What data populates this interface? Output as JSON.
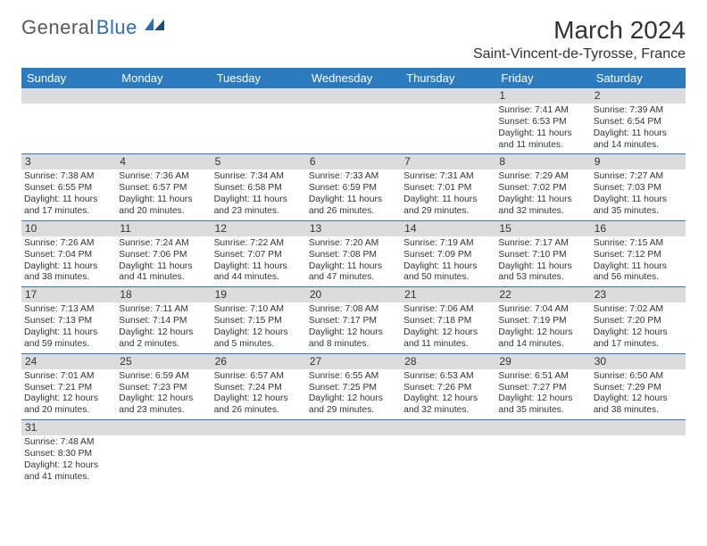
{
  "logo": {
    "part1": "General",
    "part2": "Blue"
  },
  "title": "March 2024",
  "subtitle": "Saint-Vincent-de-Tyrosse, France",
  "colors": {
    "header_bg": "#2d7bbf",
    "daynum_bg": "#dcdcdc",
    "rule": "#2d7bbf",
    "text": "#333333",
    "logo_gray": "#5a5a5a",
    "logo_blue": "#2d6fb5"
  },
  "daynames": [
    "Sunday",
    "Monday",
    "Tuesday",
    "Wednesday",
    "Thursday",
    "Friday",
    "Saturday"
  ],
  "weeks": [
    [
      {
        "empty": true
      },
      {
        "empty": true
      },
      {
        "empty": true
      },
      {
        "empty": true
      },
      {
        "empty": true
      },
      {
        "n": "1",
        "sr": "7:41 AM",
        "ss": "6:53 PM",
        "dl": "11 hours and 11 minutes."
      },
      {
        "n": "2",
        "sr": "7:39 AM",
        "ss": "6:54 PM",
        "dl": "11 hours and 14 minutes."
      }
    ],
    [
      {
        "n": "3",
        "sr": "7:38 AM",
        "ss": "6:55 PM",
        "dl": "11 hours and 17 minutes."
      },
      {
        "n": "4",
        "sr": "7:36 AM",
        "ss": "6:57 PM",
        "dl": "11 hours and 20 minutes."
      },
      {
        "n": "5",
        "sr": "7:34 AM",
        "ss": "6:58 PM",
        "dl": "11 hours and 23 minutes."
      },
      {
        "n": "6",
        "sr": "7:33 AM",
        "ss": "6:59 PM",
        "dl": "11 hours and 26 minutes."
      },
      {
        "n": "7",
        "sr": "7:31 AM",
        "ss": "7:01 PM",
        "dl": "11 hours and 29 minutes."
      },
      {
        "n": "8",
        "sr": "7:29 AM",
        "ss": "7:02 PM",
        "dl": "11 hours and 32 minutes."
      },
      {
        "n": "9",
        "sr": "7:27 AM",
        "ss": "7:03 PM",
        "dl": "11 hours and 35 minutes."
      }
    ],
    [
      {
        "n": "10",
        "sr": "7:26 AM",
        "ss": "7:04 PM",
        "dl": "11 hours and 38 minutes."
      },
      {
        "n": "11",
        "sr": "7:24 AM",
        "ss": "7:06 PM",
        "dl": "11 hours and 41 minutes."
      },
      {
        "n": "12",
        "sr": "7:22 AM",
        "ss": "7:07 PM",
        "dl": "11 hours and 44 minutes."
      },
      {
        "n": "13",
        "sr": "7:20 AM",
        "ss": "7:08 PM",
        "dl": "11 hours and 47 minutes."
      },
      {
        "n": "14",
        "sr": "7:19 AM",
        "ss": "7:09 PM",
        "dl": "11 hours and 50 minutes."
      },
      {
        "n": "15",
        "sr": "7:17 AM",
        "ss": "7:10 PM",
        "dl": "11 hours and 53 minutes."
      },
      {
        "n": "16",
        "sr": "7:15 AM",
        "ss": "7:12 PM",
        "dl": "11 hours and 56 minutes."
      }
    ],
    [
      {
        "n": "17",
        "sr": "7:13 AM",
        "ss": "7:13 PM",
        "dl": "11 hours and 59 minutes."
      },
      {
        "n": "18",
        "sr": "7:11 AM",
        "ss": "7:14 PM",
        "dl": "12 hours and 2 minutes."
      },
      {
        "n": "19",
        "sr": "7:10 AM",
        "ss": "7:15 PM",
        "dl": "12 hours and 5 minutes."
      },
      {
        "n": "20",
        "sr": "7:08 AM",
        "ss": "7:17 PM",
        "dl": "12 hours and 8 minutes."
      },
      {
        "n": "21",
        "sr": "7:06 AM",
        "ss": "7:18 PM",
        "dl": "12 hours and 11 minutes."
      },
      {
        "n": "22",
        "sr": "7:04 AM",
        "ss": "7:19 PM",
        "dl": "12 hours and 14 minutes."
      },
      {
        "n": "23",
        "sr": "7:02 AM",
        "ss": "7:20 PM",
        "dl": "12 hours and 17 minutes."
      }
    ],
    [
      {
        "n": "24",
        "sr": "7:01 AM",
        "ss": "7:21 PM",
        "dl": "12 hours and 20 minutes."
      },
      {
        "n": "25",
        "sr": "6:59 AM",
        "ss": "7:23 PM",
        "dl": "12 hours and 23 minutes."
      },
      {
        "n": "26",
        "sr": "6:57 AM",
        "ss": "7:24 PM",
        "dl": "12 hours and 26 minutes."
      },
      {
        "n": "27",
        "sr": "6:55 AM",
        "ss": "7:25 PM",
        "dl": "12 hours and 29 minutes."
      },
      {
        "n": "28",
        "sr": "6:53 AM",
        "ss": "7:26 PM",
        "dl": "12 hours and 32 minutes."
      },
      {
        "n": "29",
        "sr": "6:51 AM",
        "ss": "7:27 PM",
        "dl": "12 hours and 35 minutes."
      },
      {
        "n": "30",
        "sr": "6:50 AM",
        "ss": "7:29 PM",
        "dl": "12 hours and 38 minutes."
      }
    ],
    [
      {
        "n": "31",
        "sr": "7:48 AM",
        "ss": "8:30 PM",
        "dl": "12 hours and 41 minutes."
      },
      {
        "empty": true
      },
      {
        "empty": true
      },
      {
        "empty": true
      },
      {
        "empty": true
      },
      {
        "empty": true
      },
      {
        "empty": true
      }
    ]
  ],
  "labels": {
    "sunrise": "Sunrise:",
    "sunset": "Sunset:",
    "daylight": "Daylight:"
  }
}
